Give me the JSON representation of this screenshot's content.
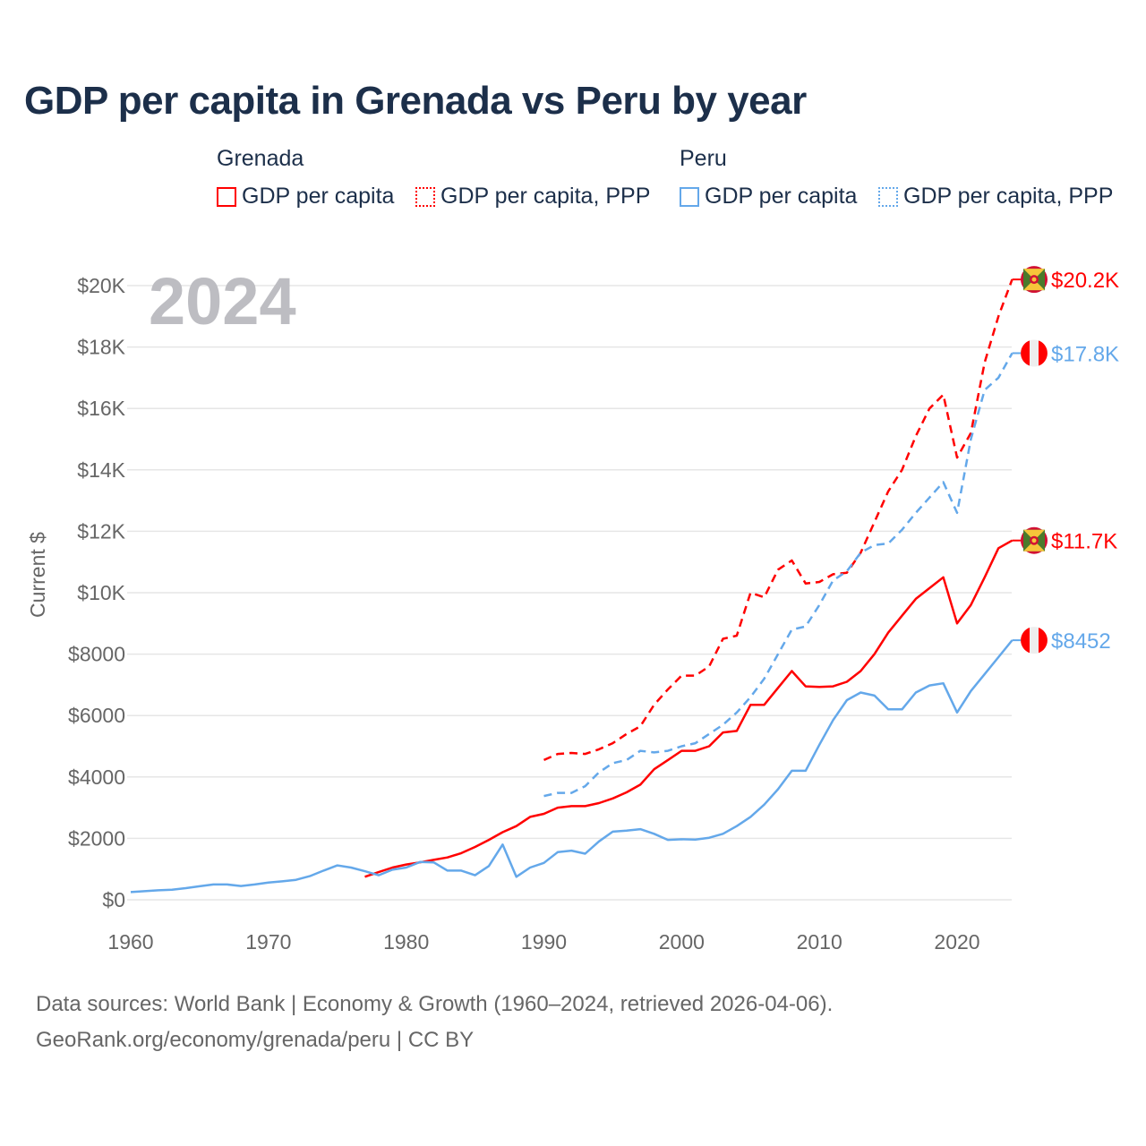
{
  "title": "GDP per capita in Grenada vs Peru by year",
  "legend": {
    "groups": [
      {
        "name": "Grenada",
        "items": [
          "GDP per capita",
          "GDP per capita, PPP"
        ]
      },
      {
        "name": "Peru",
        "items": [
          "GDP per capita",
          "GDP per capita, PPP"
        ]
      }
    ]
  },
  "year_label": "2024",
  "footer": {
    "line1": "Data sources: World Bank | Economy & Growth (1960–2024, retrieved 2026-04-06).",
    "line2": "GeoRank.org/economy/grenada/peru | CC BY"
  },
  "colors": {
    "grenada": "#ff0000",
    "peru": "#64a8ea"
  },
  "chart_data": {
    "type": "line",
    "title": "GDP per capita in Grenada vs Peru by year",
    "xlabel": "",
    "ylabel": "Current $",
    "xlim": [
      1960,
      2024
    ],
    "ylim": [
      0,
      20000
    ],
    "grid": true,
    "x_ticks": [
      1960,
      1970,
      1980,
      1990,
      2000,
      2010,
      2020
    ],
    "x_tick_labels": [
      "1960",
      "1970",
      "1980",
      "1990",
      "2000",
      "2010",
      "2020"
    ],
    "y_ticks": [
      0,
      2000,
      4000,
      6000,
      8000,
      10000,
      12000,
      14000,
      16000,
      18000,
      20000
    ],
    "y_tick_labels": [
      "$0",
      "$2000",
      "$4000",
      "$6000",
      "$8000",
      "$10K",
      "$12K",
      "$14K",
      "$16K",
      "$18K",
      "$20K"
    ],
    "series": [
      {
        "name": "Grenada GDP per capita, PPP",
        "country": "grenada",
        "dashed": true,
        "start": 1990,
        "end_label": "$20.2K",
        "values": [
          4550,
          4750,
          4780,
          4750,
          4900,
          5100,
          5400,
          5650,
          6350,
          6850,
          7300,
          7300,
          7600,
          8500,
          8600,
          10000,
          9850,
          10750,
          11050,
          10300,
          10350,
          10600,
          10650,
          11300,
          12300,
          13300,
          14000,
          15100,
          16000,
          16450,
          14400,
          15200,
          17500,
          19000,
          20200
        ]
      },
      {
        "name": "Peru GDP per capita, PPP",
        "country": "peru",
        "dashed": true,
        "start": 1990,
        "end_label": "$17.8K",
        "values": [
          3380,
          3480,
          3480,
          3700,
          4150,
          4450,
          4550,
          4850,
          4800,
          4850,
          5000,
          5100,
          5400,
          5700,
          6100,
          6600,
          7200,
          8000,
          8800,
          8900,
          9600,
          10400,
          10700,
          11300,
          11550,
          11600,
          12050,
          12600,
          13100,
          13600,
          12600,
          15000,
          16600,
          17000,
          17800
        ]
      },
      {
        "name": "Grenada GDP per capita",
        "country": "grenada",
        "dashed": false,
        "start": 1977,
        "end_label": "$11.7K",
        "values": [
          750,
          900,
          1050,
          1150,
          1220,
          1300,
          1380,
          1520,
          1720,
          1950,
          2200,
          2400,
          2700,
          2800,
          3000,
          3050,
          3050,
          3150,
          3300,
          3500,
          3750,
          4250,
          4550,
          4850,
          4850,
          5000,
          5450,
          5500,
          6350,
          6350,
          6900,
          7450,
          6950,
          6930,
          6950,
          7100,
          7450,
          8000,
          8700,
          9250,
          9800,
          10150,
          10500,
          9000,
          9600,
          10500,
          11450,
          11700
        ]
      },
      {
        "name": "Peru GDP per capita",
        "country": "peru",
        "dashed": false,
        "start": 1960,
        "end_label": "$8452",
        "values": [
          250,
          280,
          310,
          330,
          380,
          440,
          500,
          500,
          450,
          500,
          560,
          600,
          650,
          770,
          950,
          1120,
          1050,
          930,
          800,
          980,
          1050,
          1230,
          1220,
          950,
          950,
          800,
          1100,
          1800,
          750,
          1050,
          1200,
          1550,
          1600,
          1500,
          1900,
          2220,
          2250,
          2300,
          2150,
          1950,
          1970,
          1960,
          2020,
          2150,
          2400,
          2700,
          3100,
          3600,
          4200,
          4200,
          5050,
          5850,
          6500,
          6750,
          6650,
          6200,
          6200,
          6750,
          6980,
          7050,
          6100,
          6800,
          7350,
          7900,
          8452
        ]
      }
    ]
  }
}
